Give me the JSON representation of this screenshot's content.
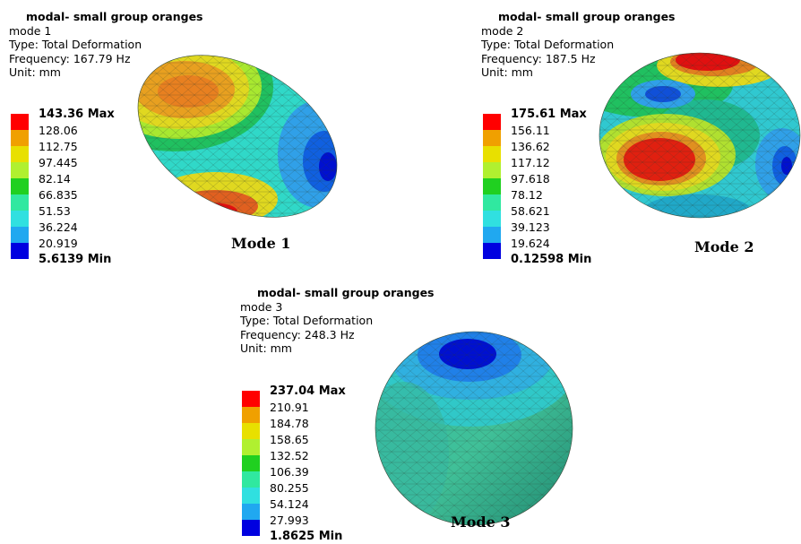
{
  "legend_colors": [
    "#ff0000",
    "#f0a000",
    "#e8e000",
    "#b0f030",
    "#20d020",
    "#30e8a0",
    "#30e0e0",
    "#20a8f0",
    "#0000e0"
  ],
  "modes": [
    {
      "title": "modal- small group oranges",
      "mode": "mode 1",
      "type": "Type: Total Deformation",
      "frequency": "Frequency: 167.79 Hz",
      "unit": "Unit: mm",
      "legend": [
        "143.36 Max",
        "128.06",
        "112.75",
        "97.445",
        "82.14",
        "66.835",
        "51.53",
        "36.224",
        "20.919",
        "5.6139 Min"
      ],
      "caption": "Mode 1"
    },
    {
      "title": "modal- small group oranges",
      "mode": "mode 2",
      "type": "Type: Total Deformation",
      "frequency": "Frequency: 187.5 Hz",
      "unit": "Unit: mm",
      "legend": [
        "175.61 Max",
        "156.11",
        "136.62",
        "117.12",
        "97.618",
        "78.12",
        "58.621",
        "39.123",
        "19.624",
        "0.12598 Min"
      ],
      "caption": "Mode 2"
    },
    {
      "title": "modal- small group oranges",
      "mode": "mode 3",
      "type": "Type: Total Deformation",
      "frequency": "Frequency: 248.3 Hz",
      "unit": "Unit: mm",
      "legend": [
        "237.04 Max",
        "210.91",
        "184.78",
        "158.65",
        "132.52",
        "106.39",
        "80.255",
        "54.124",
        "27.993",
        "1.8625 Min"
      ],
      "caption": "Mode 3"
    }
  ]
}
